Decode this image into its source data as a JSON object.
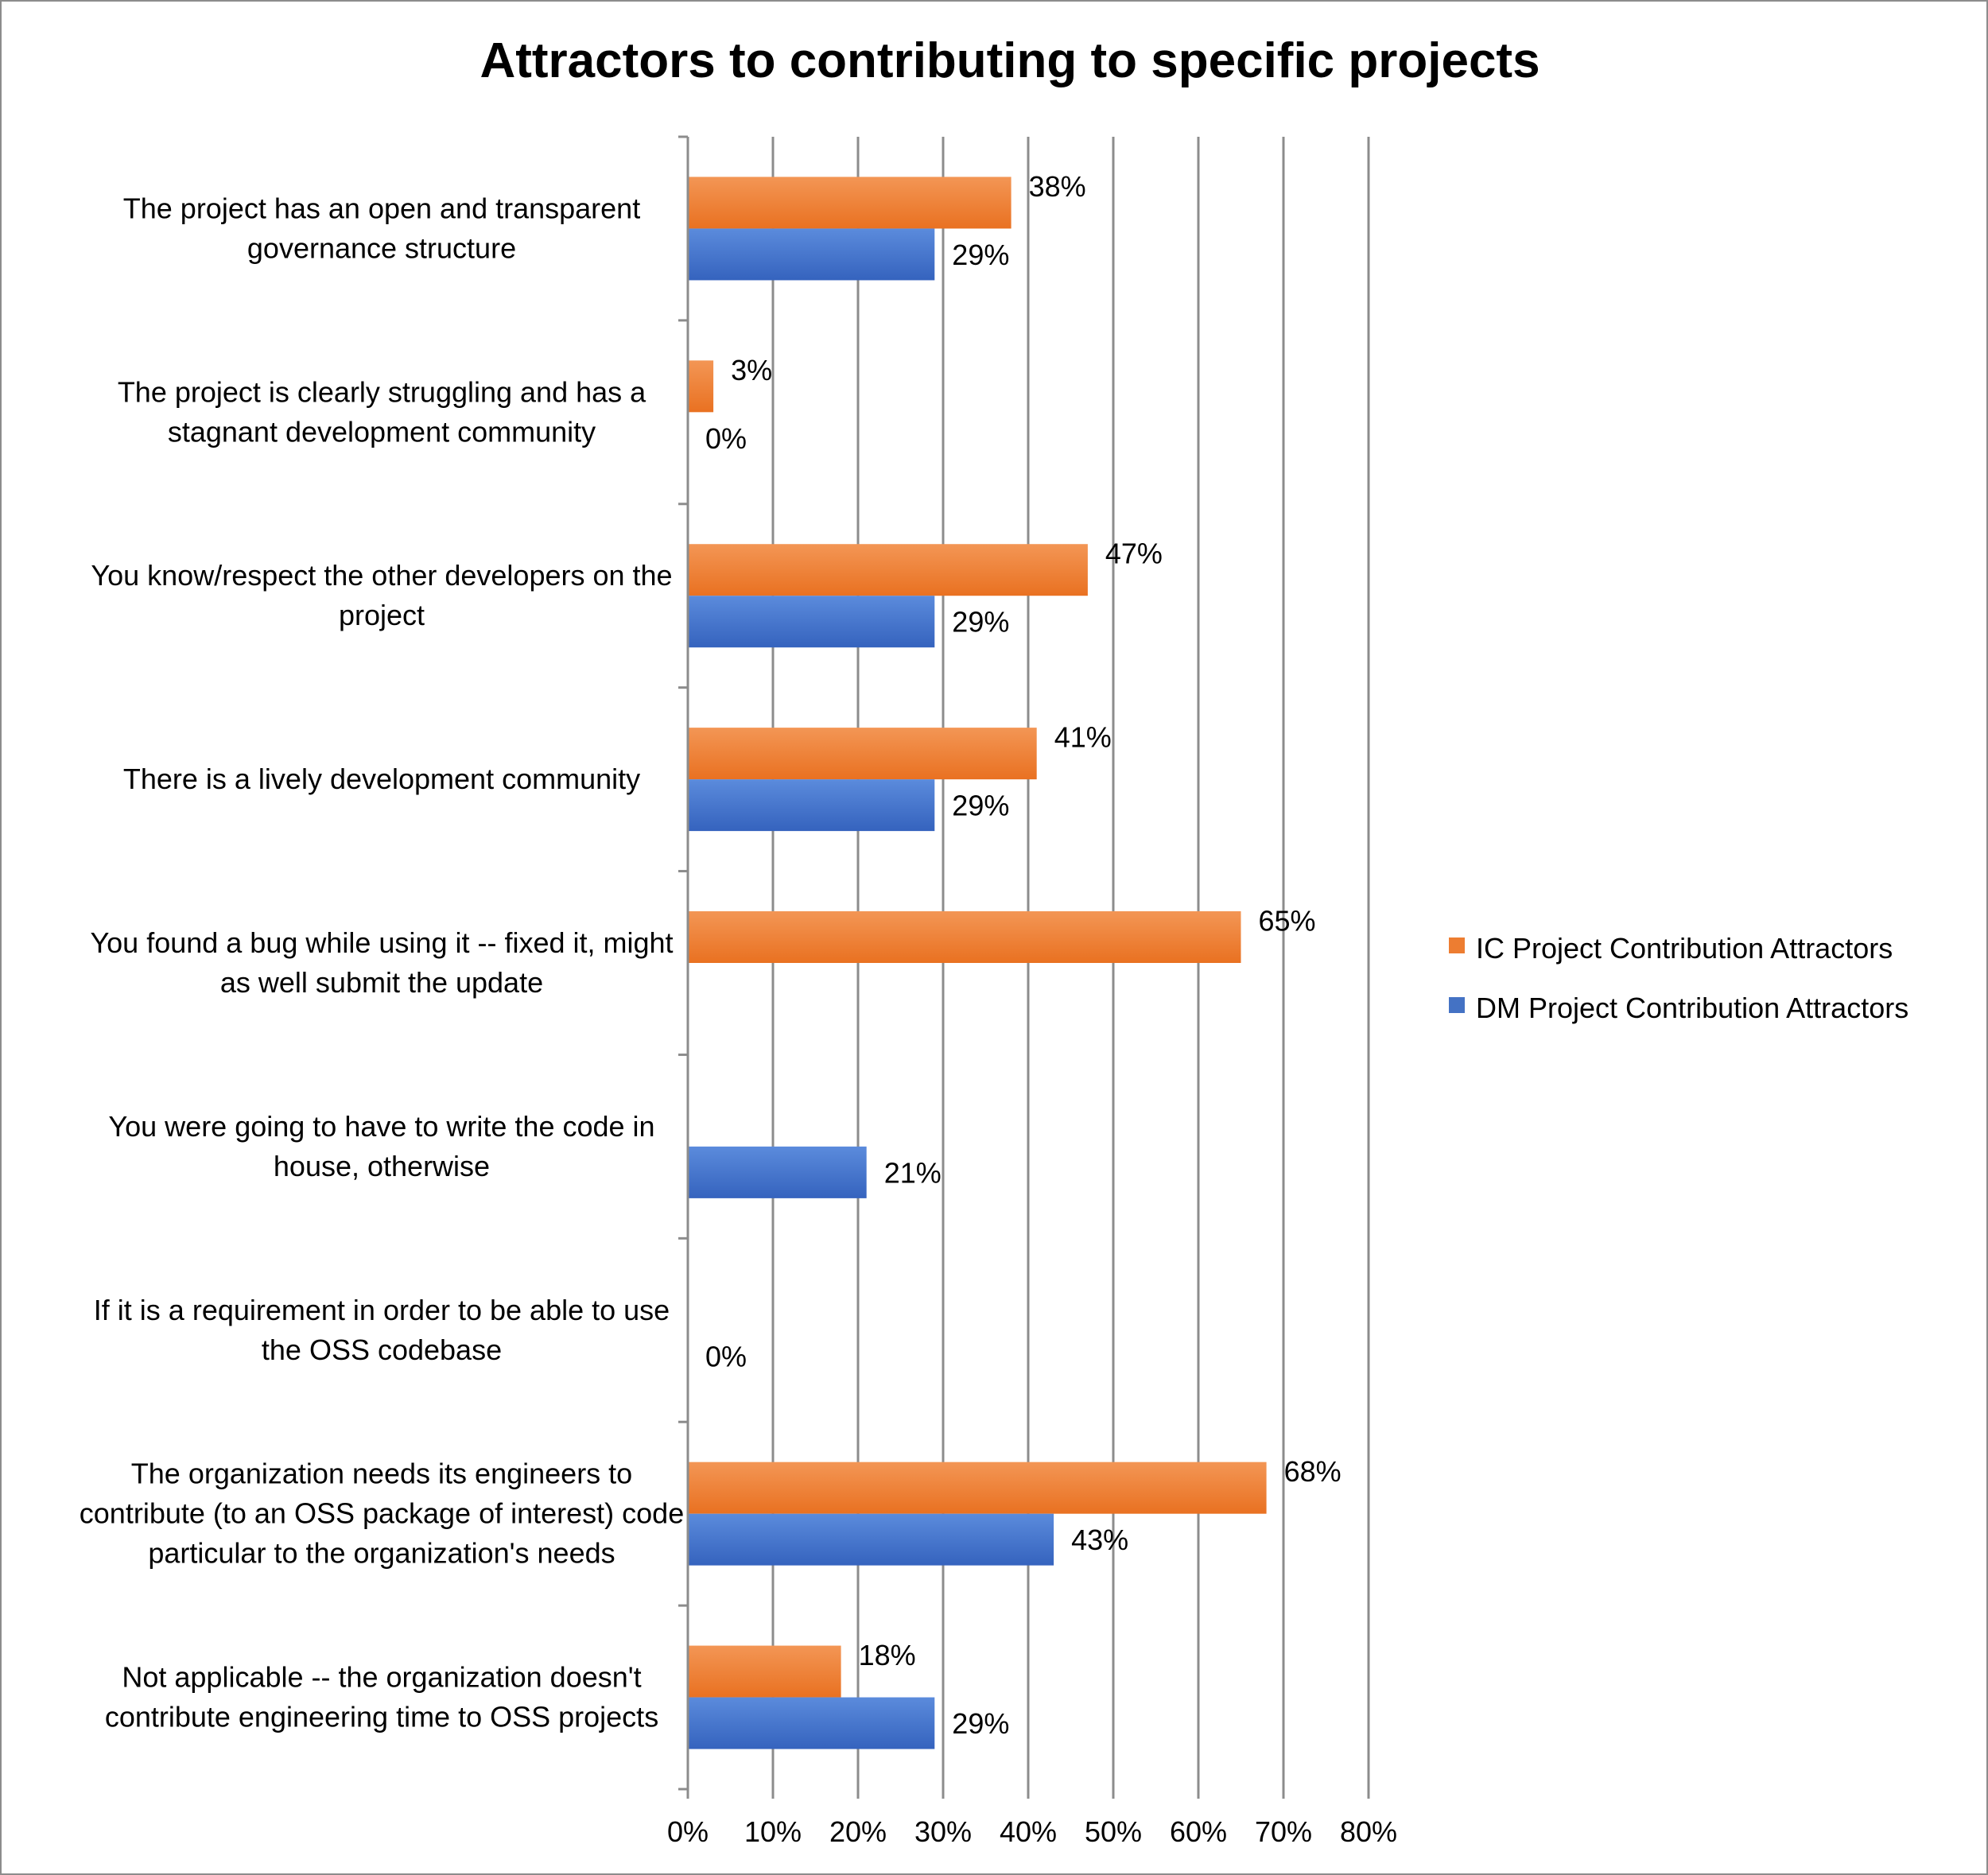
{
  "chart_data": {
    "type": "bar",
    "orientation": "horizontal",
    "title": "Attractors to contributing to specific projects",
    "xlabel": "",
    "ylabel": "",
    "xlim": [
      0,
      80
    ],
    "ticks": [
      "0%",
      "10%",
      "20%",
      "30%",
      "40%",
      "50%",
      "60%",
      "70%",
      "80%"
    ],
    "grid": true,
    "legend_position": "right",
    "categories": [
      [
        "The project has an open and transparent",
        "governance structure"
      ],
      [
        "The project is clearly struggling and has a",
        "stagnant development community"
      ],
      [
        "You know/respect the other developers on the",
        "project"
      ],
      [
        "There is a lively development community"
      ],
      [
        "You found a bug while using it -- fixed it, might",
        "as well submit the update"
      ],
      [
        "You were going to have to write the code in",
        "house, otherwise"
      ],
      [
        "If it is a requirement in order to be able to use",
        "the OSS codebase"
      ],
      [
        "The organization needs its engineers to",
        "contribute (to an OSS package of interest) code",
        "particular to the organization's needs"
      ],
      [
        "Not applicable -- the organization doesn't",
        "contribute engineering time to OSS projects"
      ]
    ],
    "series": [
      {
        "name": "IC Project Contribution Attractors",
        "color": "#ED7D31",
        "values": [
          38,
          3,
          47,
          41,
          65,
          null,
          null,
          68,
          18
        ],
        "labels": [
          "38%",
          "3%",
          "47%",
          "41%",
          "65%",
          "",
          "",
          "68%",
          "18%"
        ]
      },
      {
        "name": "DM Project Contribution Attractors",
        "color": "#4472C4",
        "values": [
          29,
          0,
          29,
          29,
          null,
          21,
          0,
          43,
          29
        ],
        "labels": [
          "29%",
          "0%",
          "29%",
          "29%",
          "",
          "21%",
          "0%",
          "43%",
          "29%"
        ]
      }
    ]
  }
}
